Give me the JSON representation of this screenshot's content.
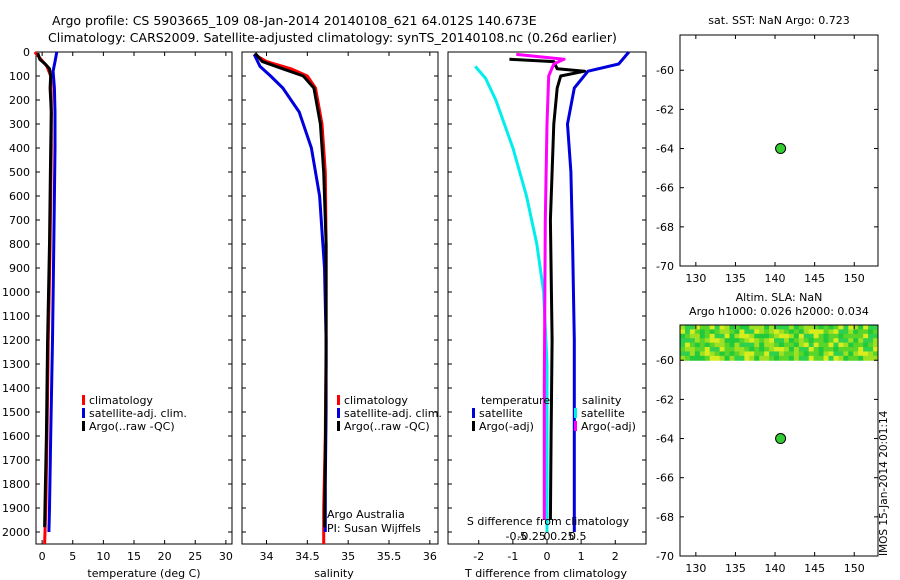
{
  "header": {
    "line1": "Argo profile: CS 5903665_109 08-Jan-2014 20140108_621 64.012S 140.673E",
    "line2": "Climatology: CARS2009. Satellite-adjusted climatology: synTS_20140108.nc (0.26d earlier)"
  },
  "colors": {
    "climatology": "#ff0000",
    "satellite": "#0000dd",
    "argo": "#000000",
    "sat_temp_diff": "#00eeee",
    "argo_sal_diff": "#ff00ff",
    "marker": "#33cc33"
  },
  "chart_data": [
    {
      "id": "temperature",
      "type": "line",
      "xlabel": "temperature (deg C)",
      "xlim": [
        -1,
        31
      ],
      "ylim": [
        2050,
        0
      ],
      "xticks": [
        0,
        5,
        10,
        15,
        20,
        25,
        30
      ],
      "yticks": [
        0,
        100,
        200,
        300,
        400,
        500,
        600,
        700,
        800,
        900,
        1000,
        1100,
        1200,
        1300,
        1400,
        1500,
        1600,
        1700,
        1800,
        1900,
        2000
      ],
      "legend": [
        "climatology",
        "satellite-adj. clim.",
        "Argo(..raw -QC)"
      ],
      "series": [
        {
          "name": "climatology",
          "color_key": "climatology",
          "x": [
            -1.2,
            -0.2,
            0.8,
            1.4,
            1.5,
            1.5,
            1.3,
            1.0,
            0.8,
            0.6,
            0.4
          ],
          "depth": [
            0,
            30,
            60,
            100,
            200,
            400,
            800,
            1200,
            1600,
            1900,
            2050
          ]
        },
        {
          "name": "satellite-adj. clim.",
          "color_key": "satellite",
          "x": [
            2.4,
            2.1,
            1.8,
            2.0,
            2.1,
            2.1,
            1.9,
            1.7,
            1.4,
            1.2,
            1.1
          ],
          "depth": [
            0,
            40,
            80,
            150,
            250,
            400,
            800,
            1200,
            1600,
            1900,
            2000
          ]
        },
        {
          "name": "Argo",
          "color_key": "argo",
          "x": [
            -0.7,
            -0.4,
            0.5,
            1.2,
            1.4,
            1.3,
            1.5,
            1.4,
            1.2,
            0.9,
            0.7,
            0.5,
            0.4
          ],
          "depth": [
            5,
            30,
            50,
            70,
            100,
            150,
            250,
            400,
            800,
            1200,
            1600,
            1850,
            1980
          ]
        }
      ]
    },
    {
      "id": "salinity",
      "type": "line",
      "xlabel": "salinity",
      "xlim": [
        33.7,
        36.1
      ],
      "ylim": [
        2050,
        0
      ],
      "xticks": [
        34,
        34.5,
        35,
        35.5,
        36
      ],
      "legend": [
        "climatology",
        "satellite-adj. clim.",
        "Argo(..raw -QC)"
      ],
      "annotation": [
        "Argo Australia",
        "PI: Susan Wijffels"
      ],
      "series": [
        {
          "name": "climatology",
          "color_key": "climatology",
          "x": [
            33.85,
            34.0,
            34.3,
            34.5,
            34.6,
            34.68,
            34.72,
            34.73,
            34.73,
            34.72,
            34.7,
            34.7
          ],
          "depth": [
            10,
            40,
            70,
            100,
            150,
            300,
            500,
            800,
            1200,
            1600,
            1900,
            2050
          ]
        },
        {
          "name": "satellite-adj. clim.",
          "color_key": "satellite",
          "x": [
            33.85,
            33.92,
            34.05,
            34.2,
            34.4,
            34.55,
            34.65,
            34.71,
            34.73,
            34.73,
            34.72,
            34.72
          ],
          "depth": [
            10,
            60,
            100,
            150,
            250,
            400,
            600,
            900,
            1200,
            1500,
            1800,
            2000
          ]
        },
        {
          "name": "Argo",
          "color_key": "argo",
          "x": [
            33.86,
            33.95,
            34.2,
            34.45,
            34.58,
            34.66,
            34.7,
            34.73,
            34.73,
            34.72,
            34.71
          ],
          "depth": [
            5,
            40,
            70,
            100,
            150,
            300,
            500,
            800,
            1300,
            1700,
            1980
          ]
        }
      ]
    },
    {
      "id": "difference",
      "type": "line",
      "xlabel": "T difference from climatology",
      "xlabel_top": "S difference from climatology",
      "xlim": [
        -2.9,
        2.9
      ],
      "ylim": [
        2050,
        0
      ],
      "xticks_T": [
        -2,
        -1,
        0,
        1,
        2
      ],
      "xticks_S": [
        -0.5,
        -0.25,
        0,
        0.25,
        0.5
      ],
      "legend_left_title": "temperature",
      "legend_right_title": "salinity",
      "legend_left": [
        "satellite",
        "Argo(-adj)"
      ],
      "legend_right": [
        "satellite",
        "Argo(-adj)"
      ],
      "series": [
        {
          "name": "T satellite",
          "color_key": "satellite",
          "x": [
            2.4,
            2.1,
            1.2,
            0.8,
            0.6,
            0.7,
            0.75,
            0.8,
            0.8,
            0.8
          ],
          "depth": [
            0,
            50,
            80,
            150,
            300,
            500,
            800,
            1200,
            1600,
            2000
          ]
        },
        {
          "name": "T Argo(-adj)",
          "color_key": "argo",
          "x": [
            -1.1,
            0.2,
            0.3,
            1.1,
            0.4,
            0.3,
            0.2,
            0.1,
            0.15,
            0.12,
            0.1
          ],
          "depth": [
            30,
            40,
            70,
            80,
            100,
            150,
            300,
            700,
            1200,
            1600,
            1950
          ]
        },
        {
          "name": "S satellite",
          "color_key": "sat_temp_diff",
          "x": [
            -2.1,
            -1.8,
            -1.5,
            -1.0,
            -0.6,
            -0.3,
            -0.1,
            0.0,
            0.0,
            0.0
          ],
          "depth": [
            60,
            110,
            200,
            400,
            600,
            800,
            1000,
            1300,
            1700,
            2000
          ]
        },
        {
          "name": "S Argo(-adj)",
          "color_key": "argo_sal_diff",
          "x": [
            -0.9,
            0.5,
            0.2,
            0.05,
            0.0,
            -0.05,
            -0.08,
            -0.08
          ],
          "depth": [
            10,
            30,
            50,
            100,
            300,
            700,
            1400,
            1950
          ]
        }
      ]
    },
    {
      "id": "sst_map",
      "type": "scatter",
      "title": "sat. SST: NaN Argo: 0.723",
      "xlim": [
        128,
        153
      ],
      "ylim": [
        -70,
        -58.2
      ],
      "xticks": [
        130,
        135,
        140,
        145,
        150
      ],
      "yticks": [
        -60,
        -62,
        -64,
        -66,
        -68,
        -70
      ],
      "points": [
        {
          "lon": 140.7,
          "lat": -64.0
        }
      ]
    },
    {
      "id": "sla_map",
      "type": "heatmap",
      "title": "Altim. SLA: NaN",
      "subtitle": "Argo h1000: 0.026 h2000: 0.034",
      "xlim": [
        128,
        153
      ],
      "ylim": [
        -70,
        -58.2
      ],
      "xticks": [
        130,
        135,
        140,
        145,
        150
      ],
      "yticks": [
        -60,
        -62,
        -64,
        -66,
        -68,
        -70
      ],
      "points": [
        {
          "lon": 140.7,
          "lat": -64.0
        }
      ],
      "field_lat_range": [
        -60,
        -58.2
      ]
    }
  ],
  "side_text": "IMOS 15-Jan-2014 20:01:14"
}
